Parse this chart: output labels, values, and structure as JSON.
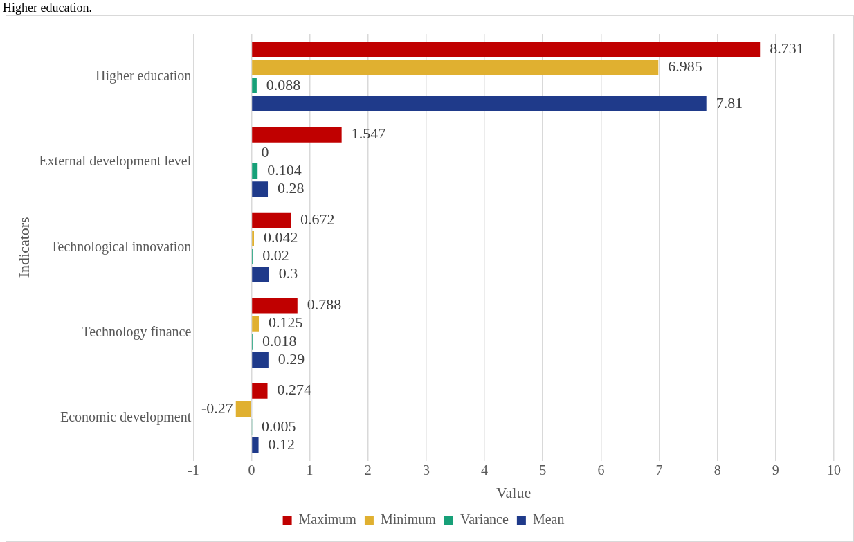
{
  "chart_data": {
    "type": "bar",
    "orientation": "horizontal",
    "annotations": [
      "Higher education."
    ],
    "xlabel": "Value",
    "ylabel": "Indicators",
    "categories": [
      "Higher education",
      "External development level",
      "Technological innovation",
      "Technology finance",
      "Economic development"
    ],
    "series": [
      {
        "name": "Maximum",
        "color": "#c00000",
        "values": [
          8.731,
          1.547,
          0.672,
          0.788,
          0.274
        ]
      },
      {
        "name": "Minimum",
        "color": "#e0b030",
        "values": [
          6.985,
          0,
          0.042,
          0.125,
          -0.27
        ]
      },
      {
        "name": "Variance",
        "color": "#17a078",
        "values": [
          0.088,
          0.104,
          0.02,
          0.018,
          0.005
        ]
      },
      {
        "name": "Mean",
        "color": "#1f3a8a",
        "values": [
          7.81,
          0.28,
          0.3,
          0.29,
          0.12
        ]
      }
    ],
    "xlim": [
      -1,
      10
    ],
    "xticks": [
      -1,
      0,
      1,
      2,
      3,
      4,
      5,
      6,
      7,
      8,
      9,
      10
    ],
    "grid": "x",
    "legend": "bottom",
    "data_labels": true
  }
}
